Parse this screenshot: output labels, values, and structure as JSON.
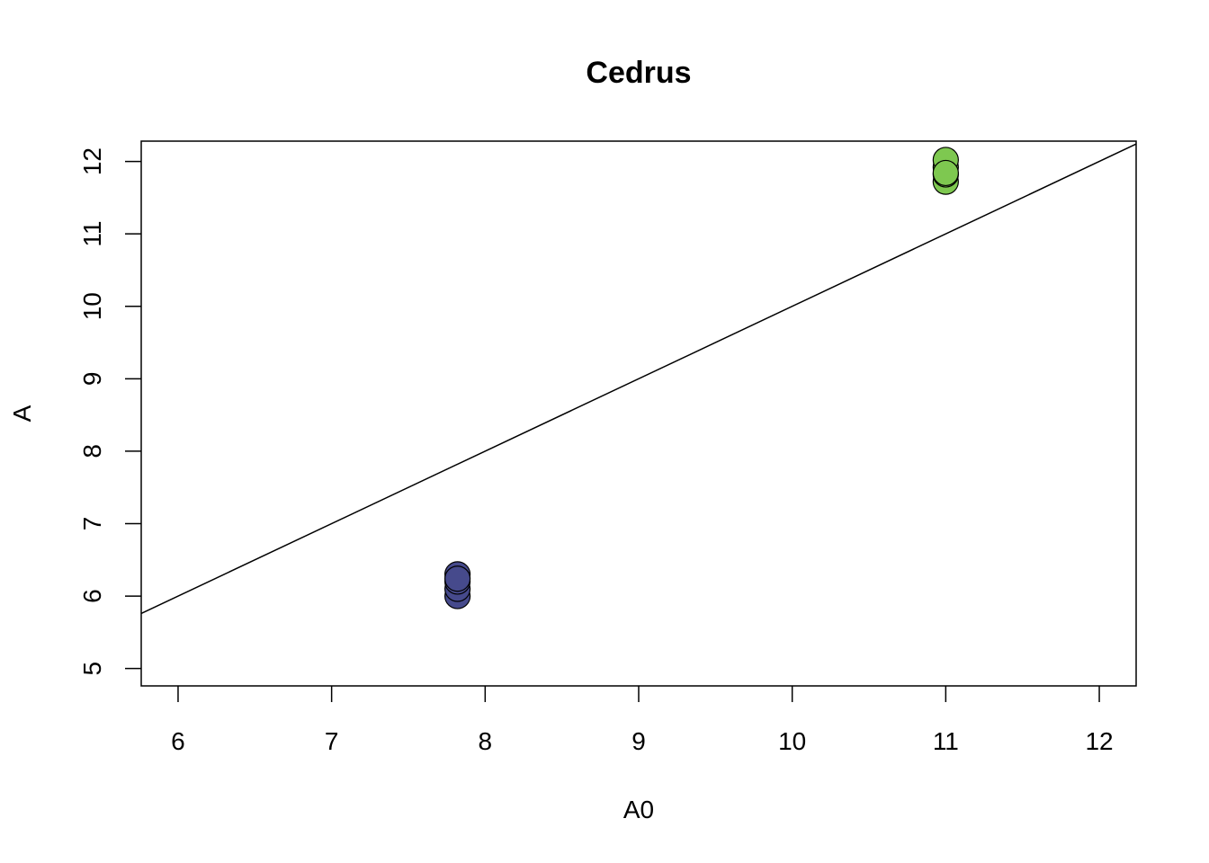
{
  "chart_data": {
    "type": "scatter",
    "title": "Cedrus",
    "xlabel": "A0",
    "ylabel": "A",
    "xlim": [
      5.76,
      12.24
    ],
    "ylim": [
      4.76,
      12.28
    ],
    "x_ticks": [
      6,
      7,
      8,
      9,
      10,
      11,
      12
    ],
    "y_ticks": [
      5,
      6,
      7,
      8,
      9,
      10,
      11,
      12
    ],
    "grid": false,
    "reference_line": {
      "intercept": 0,
      "slope": 1
    },
    "series": [
      {
        "color": "#464a8c",
        "points": [
          {
            "x": 7.82,
            "y": 6.0
          },
          {
            "x": 7.82,
            "y": 6.1
          },
          {
            "x": 7.82,
            "y": 6.2
          },
          {
            "x": 7.82,
            "y": 6.3
          },
          {
            "x": 7.82,
            "y": 6.24
          }
        ]
      },
      {
        "color": "#7ec850",
        "points": [
          {
            "x": 11.0,
            "y": 11.72
          },
          {
            "x": 11.0,
            "y": 11.82
          },
          {
            "x": 11.0,
            "y": 11.92
          },
          {
            "x": 11.0,
            "y": 12.02
          },
          {
            "x": 11.0,
            "y": 11.84
          }
        ]
      }
    ]
  }
}
